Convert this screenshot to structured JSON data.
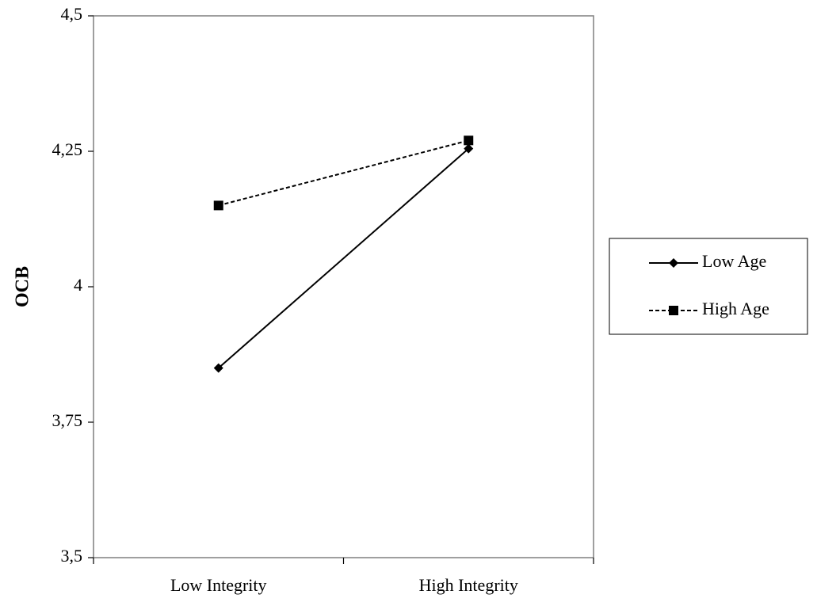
{
  "chart_data": {
    "type": "line",
    "categories": [
      "Low Integrity",
      "High Integrity"
    ],
    "series": [
      {
        "name": "Low Age",
        "values": [
          3.85,
          4.255
        ],
        "line_style": "solid",
        "marker": "diamond",
        "color": "#000000"
      },
      {
        "name": "High Age",
        "values": [
          4.15,
          4.27
        ],
        "line_style": "dashed",
        "marker": "square",
        "color": "#000000"
      }
    ],
    "ylabel": "OCB",
    "xlabel": "",
    "ylim": [
      3.5,
      4.5
    ],
    "yticks": [
      3.5,
      3.75,
      4,
      4.25,
      4.5
    ],
    "ytick_labels": [
      "3,5",
      "3,75",
      "4",
      "4,25",
      "4,5"
    ],
    "grid": false,
    "legend_position": "right"
  }
}
